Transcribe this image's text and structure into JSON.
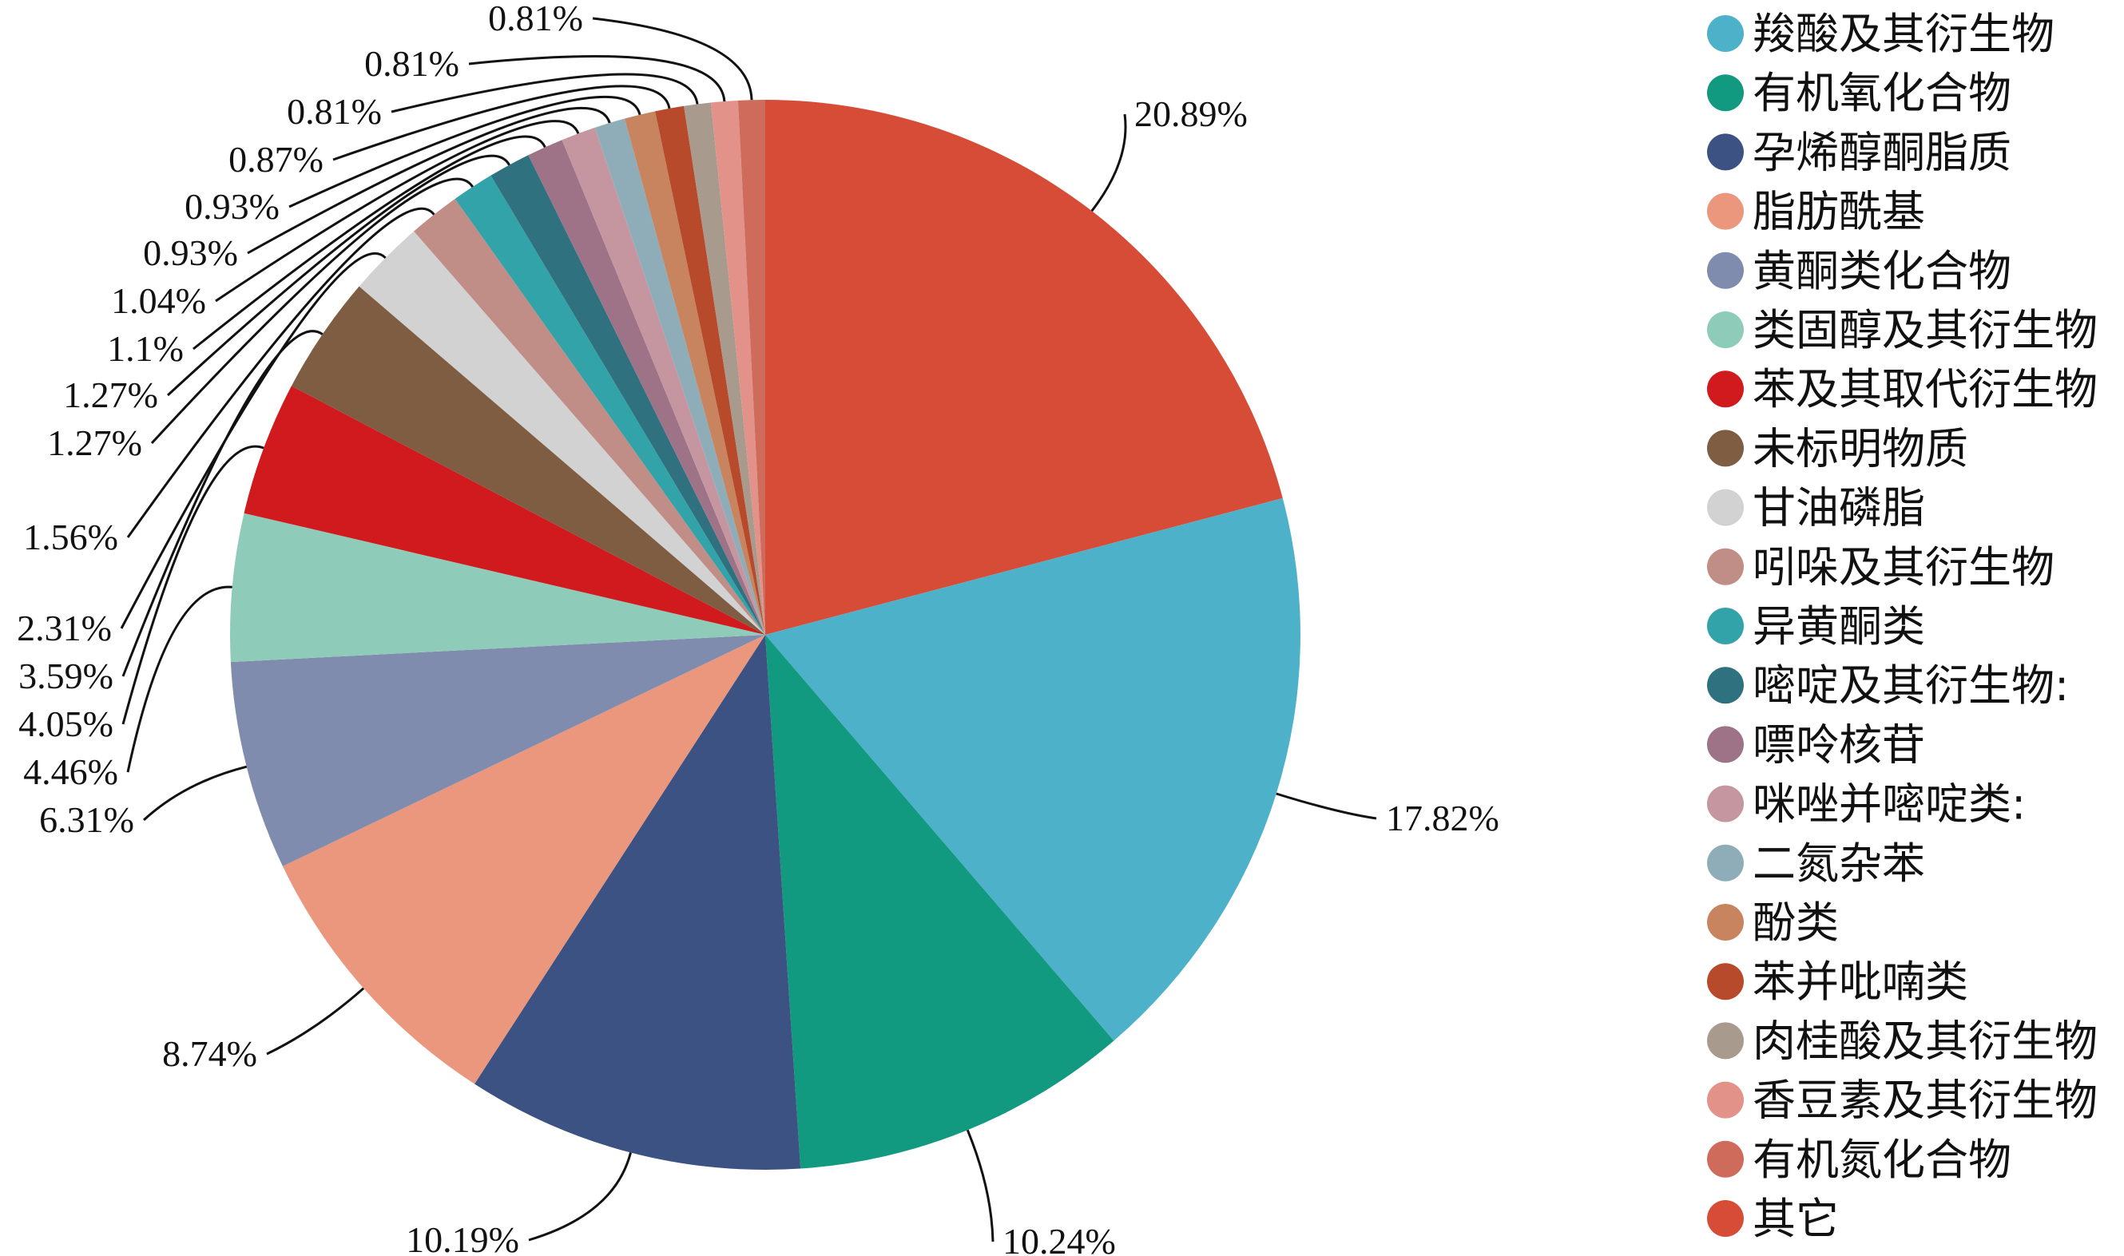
{
  "chart_data": {
    "type": "pie",
    "title": "",
    "legend_position": "right",
    "start_angle_deg": 0,
    "direction": "clockwise",
    "slices": [
      {
        "name": "其它",
        "value": 20.89,
        "label": "20.89%",
        "color": "#D64C36"
      },
      {
        "name": "羧酸及其衍生物",
        "value": 17.82,
        "label": "17.82%",
        "color": "#4DB1C9"
      },
      {
        "name": "有机氧化合物",
        "value": 10.24,
        "label": "10.24%",
        "color": "#129A80"
      },
      {
        "name": "孕烯醇酮脂质",
        "value": 10.19,
        "label": "10.19%",
        "color": "#3B5282"
      },
      {
        "name": "脂肪酰基",
        "value": 8.74,
        "label": "8.74%",
        "color": "#EA977D"
      },
      {
        "name": "黄酮类化合物",
        "value": 6.31,
        "label": "6.31%",
        "color": "#808CAE"
      },
      {
        "name": "类固醇及其衍生物",
        "value": 4.46,
        "label": "4.46%",
        "color": "#8FCBB9"
      },
      {
        "name": "苯及其取代衍生物",
        "value": 4.05,
        "label": "4.05%",
        "color": "#D01A1D"
      },
      {
        "name": "未标明物质",
        "value": 3.59,
        "label": "3.59%",
        "color": "#7E5D43"
      },
      {
        "name": "甘油磷脂",
        "value": 2.31,
        "label": "2.31%",
        "color": "#D2D2D2"
      },
      {
        "name": "吲哚及其衍生物",
        "value": 1.56,
        "label": "1.56%",
        "color": "#C08E86"
      },
      {
        "name": "异黄酮类",
        "value": 1.27,
        "label": "1.27%",
        "color": "#32A4A9"
      },
      {
        "name": "嘧啶及其衍生物:",
        "value": 1.27,
        "label": "1.27%",
        "color": "#307180"
      },
      {
        "name": "嘌呤核苷",
        "value": 1.1,
        "label": "1.1%",
        "color": "#9E7387"
      },
      {
        "name": "咪唑并嘧啶类:",
        "value": 1.04,
        "label": "1.04%",
        "color": "#C5969F"
      },
      {
        "name": "二氮杂苯",
        "value": 0.93,
        "label": "0.93%",
        "color": "#8FADB9"
      },
      {
        "name": "酚类",
        "value": 0.93,
        "label": "0.93%",
        "color": "#C8845F"
      },
      {
        "name": "苯并吡喃类",
        "value": 0.87,
        "label": "0.87%",
        "color": "#B84A2C"
      },
      {
        "name": "肉桂酸及其衍生物",
        "value": 0.81,
        "label": "0.81%",
        "color": "#A99A8E"
      },
      {
        "name": "香豆素及其衍生物",
        "value": 0.81,
        "label": "0.81%",
        "color": "#E3928A"
      },
      {
        "name": "有机氮化合物",
        "value": 0.81,
        "label": "0.81%",
        "color": "#CE6B5A"
      }
    ],
    "legend": [
      {
        "name": "羧酸及其衍生物",
        "color": "#4DB1C9"
      },
      {
        "name": "有机氧化合物",
        "color": "#129A80"
      },
      {
        "name": "孕烯醇酮脂质",
        "color": "#3B5282"
      },
      {
        "name": "脂肪酰基",
        "color": "#EA977D"
      },
      {
        "name": "黄酮类化合物",
        "color": "#808CAE"
      },
      {
        "name": "类固醇及其衍生物",
        "color": "#8FCBB9"
      },
      {
        "name": "苯及其取代衍生物",
        "color": "#D01A1D"
      },
      {
        "name": "未标明物质",
        "color": "#7E5D43"
      },
      {
        "name": "甘油磷脂",
        "color": "#D2D2D2"
      },
      {
        "name": "吲哚及其衍生物",
        "color": "#C08E86"
      },
      {
        "name": "异黄酮类",
        "color": "#32A4A9"
      },
      {
        "name": "嘧啶及其衍生物:",
        "color": "#307180"
      },
      {
        "name": "嘌呤核苷",
        "color": "#9E7387"
      },
      {
        "name": "咪唑并嘧啶类:",
        "color": "#C5969F"
      },
      {
        "name": "二氮杂苯",
        "color": "#8FADB9"
      },
      {
        "name": "酚类",
        "color": "#C8845F"
      },
      {
        "name": "苯并吡喃类",
        "color": "#B84A2C"
      },
      {
        "name": "肉桂酸及其衍生物",
        "color": "#A99A8E"
      },
      {
        "name": "香豆素及其衍生物",
        "color": "#E3928A"
      },
      {
        "name": "有机氮化合物",
        "color": "#CE6B5A"
      },
      {
        "name": "其它",
        "color": "#D64C36"
      }
    ]
  }
}
